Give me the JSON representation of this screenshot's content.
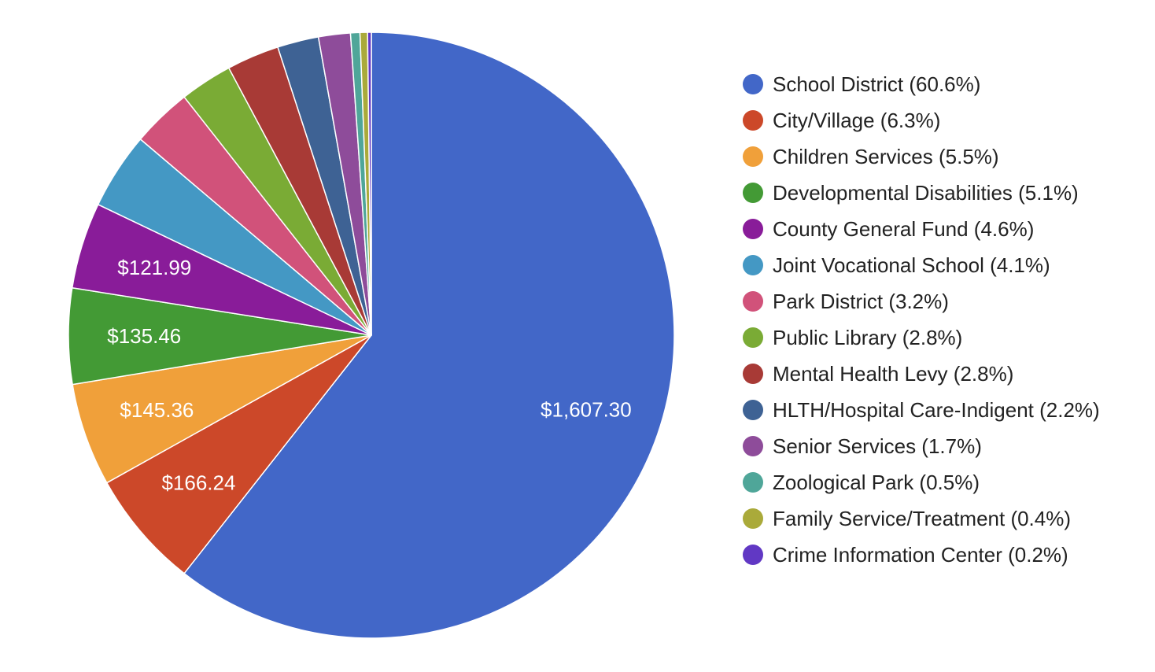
{
  "chart_data": {
    "type": "pie",
    "slices": [
      {
        "name": "School District",
        "percent": 60.6,
        "value": 1607.3,
        "label": "$1,607.30",
        "legend": "School District (60.6%)",
        "color": "#4267c8"
      },
      {
        "name": "City/Village",
        "percent": 6.3,
        "value": 166.24,
        "label": "$166.24",
        "legend": "City/Village (6.3%)",
        "color": "#cc4829"
      },
      {
        "name": "Children Services",
        "percent": 5.5,
        "value": 145.36,
        "label": "$145.36",
        "legend": "Children Services (5.5%)",
        "color": "#f0a03a"
      },
      {
        "name": "Developmental Disabilities",
        "percent": 5.1,
        "value": 135.46,
        "label": "$135.46",
        "legend": "Developmental Disabilities (5.1%)",
        "color": "#439a35"
      },
      {
        "name": "County General Fund",
        "percent": 4.6,
        "value": 121.99,
        "label": "$121.99",
        "legend": "County General Fund (4.6%)",
        "color": "#891c99"
      },
      {
        "name": "Joint Vocational School",
        "percent": 4.1,
        "label": "",
        "legend": "Joint Vocational School (4.1%)",
        "color": "#4498c4"
      },
      {
        "name": "Park District",
        "percent": 3.2,
        "label": "",
        "legend": "Park District (3.2%)",
        "color": "#d1527a"
      },
      {
        "name": "Public Library",
        "percent": 2.8,
        "label": "",
        "legend": "Public Library (2.8%)",
        "color": "#7aab35"
      },
      {
        "name": "Mental Health Levy",
        "percent": 2.8,
        "label": "",
        "legend": "Mental Health Levy (2.8%)",
        "color": "#a83a36"
      },
      {
        "name": "HLTH/Hospital Care-Indigent",
        "percent": 2.2,
        "label": "",
        "legend": "HLTH/Hospital Care-Indigent (2.2%)",
        "color": "#3e6294"
      },
      {
        "name": "Senior Services",
        "percent": 1.7,
        "label": "",
        "legend": "Senior Services (1.7%)",
        "color": "#8e4c9a"
      },
      {
        "name": "Zoological Park",
        "percent": 0.5,
        "label": "",
        "legend": "Zoological Park (0.5%)",
        "color": "#4fa699"
      },
      {
        "name": "Family Service/Treatment",
        "percent": 0.4,
        "label": "",
        "legend": "Family Service/Treatment (0.4%)",
        "color": "#aaaa3a"
      },
      {
        "name": "Crime Information Center",
        "percent": 0.2,
        "label": "",
        "legend": "Crime Information Center (0.2%)",
        "color": "#6138c4"
      }
    ],
    "legend_position": "right"
  }
}
